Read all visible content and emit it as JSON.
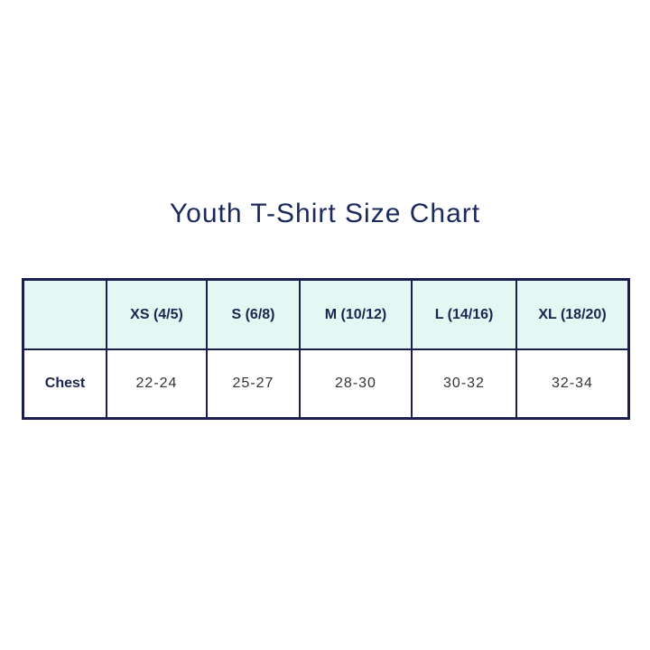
{
  "title": "Youth T-Shirt Size Chart",
  "table": {
    "headers": [
      "",
      "XS (4/5)",
      "S (6/8)",
      "M (10/12)",
      "L (14/16)",
      "XL (18/20)"
    ],
    "rows": [
      {
        "label": "Chest",
        "values": [
          "22-24",
          "25-27",
          "28-30",
          "30-32",
          "32-34"
        ]
      }
    ]
  },
  "colors": {
    "header_bg": "#e3f7f3",
    "border": "#1b1f4f",
    "title": "#1b2a5c"
  }
}
